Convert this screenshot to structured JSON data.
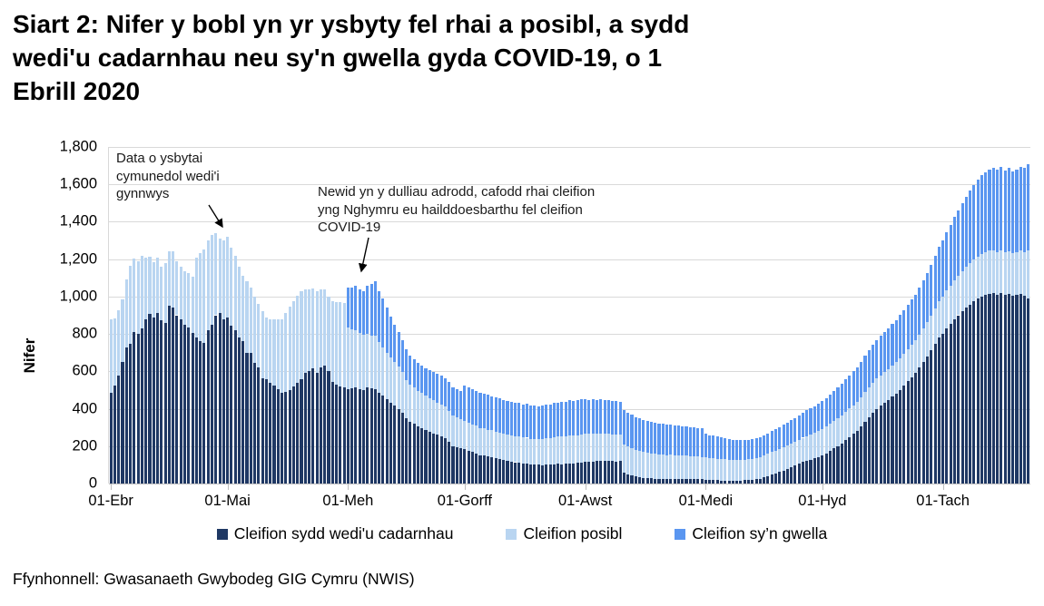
{
  "header": {
    "title_lines": [
      "Siart 2: Nifer y bobl yn yr ysbyty fel rhai a posibl, a sydd",
      "wedi'u cadarnhau neu sy'n gwella gyda COVID-19, o 1",
      "Ebrill 2020"
    ]
  },
  "annotations": {
    "community_hospitals": "Data o ysbytai cymunedol wedi'i gynnwys",
    "reporting_change": "Newid yn y dulliau adrodd, cafodd rhai cleifion yng Nghymru eu hailddoesbarthu fel cleifion COVID-19"
  },
  "legend": {
    "items": [
      {
        "label": "Cleifion sydd wedi'u cadarnhau",
        "color": "#1F3864"
      },
      {
        "label": "Cleifion posibl",
        "color": "#B9D5F1"
      },
      {
        "label": "Cleifion sy’n gwella",
        "color": "#5A96F0"
      }
    ]
  },
  "source": "Ffynhonnell: Gwasanaeth Gwybodeg GIG Cymru (NWIS)",
  "chart_data": {
    "type": "bar",
    "stacked": true,
    "title": "Siart 2: Nifer y bobl yn yr ysbyty fel rhai a posibl, a sydd wedi'u cadarnhau neu sy'n gwella gyda COVID-19, o 1 Ebrill 2020",
    "xlabel": "",
    "ylabel": "Nifer",
    "ylim": [
      0,
      1800
    ],
    "grid": true,
    "legend_position": "bottom",
    "start_date": "2020-04-01",
    "frequency": "daily",
    "y_ticks": [
      {
        "value": 0,
        "label": "0"
      },
      {
        "value": 200,
        "label": "200"
      },
      {
        "value": 400,
        "label": "400"
      },
      {
        "value": 600,
        "label": "600"
      },
      {
        "value": 800,
        "label": "800"
      },
      {
        "value": 1000,
        "label": "1,000"
      },
      {
        "value": 1200,
        "label": "1,200"
      },
      {
        "value": 1400,
        "label": "1,400"
      },
      {
        "value": 1600,
        "label": "1,600"
      },
      {
        "value": 1800,
        "label": "1,800"
      }
    ],
    "x_ticks": [
      {
        "day": 0,
        "label": "01-Ebr"
      },
      {
        "day": 30,
        "label": "01-Mai"
      },
      {
        "day": 61,
        "label": "01-Meh"
      },
      {
        "day": 91,
        "label": "01-Gorff"
      },
      {
        "day": 122,
        "label": "01-Awst"
      },
      {
        "day": 153,
        "label": "01-Medi"
      },
      {
        "day": 183,
        "label": "01-Hyd"
      },
      {
        "day": 214,
        "label": "01-Tach"
      }
    ],
    "series": [
      {
        "name": "Cleifion sydd wedi'u cadarnhau",
        "color": "#1F3864",
        "values": [
          485,
          525,
          575,
          650,
          730,
          745,
          810,
          800,
          830,
          880,
          905,
          890,
          910,
          875,
          860,
          950,
          940,
          900,
          880,
          850,
          835,
          805,
          780,
          760,
          750,
          820,
          850,
          900,
          910,
          880,
          890,
          845,
          820,
          780,
          760,
          700,
          700,
          645,
          620,
          565,
          560,
          540,
          525,
          505,
          485,
          490,
          500,
          520,
          540,
          560,
          590,
          600,
          615,
          590,
          620,
          630,
          600,
          545,
          530,
          520,
          515,
          505,
          510,
          515,
          505,
          500,
          515,
          510,
          505,
          485,
          470,
          450,
          430,
          415,
          400,
          380,
          350,
          330,
          318,
          305,
          295,
          285,
          275,
          268,
          260,
          252,
          243,
          225,
          200,
          195,
          190,
          185,
          175,
          168,
          160,
          152,
          150,
          144,
          140,
          134,
          130,
          126,
          122,
          118,
          114,
          110,
          108,
          105,
          103,
          101,
          100,
          99,
          101,
          100,
          103,
          105,
          104,
          106,
          108,
          107,
          110,
          112,
          115,
          117,
          116,
          119,
          121,
          122,
          120,
          122,
          118,
          120,
          60,
          50,
          45,
          38,
          33,
          30,
          28,
          27,
          26,
          26,
          25,
          24,
          25,
          25,
          24,
          23,
          24,
          23,
          22,
          22,
          22,
          20,
          19,
          18,
          17,
          16,
          15,
          15,
          14,
          15,
          16,
          17,
          18,
          20,
          22,
          26,
          32,
          40,
          48,
          55,
          62,
          70,
          78,
          88,
          95,
          105,
          115,
          122,
          128,
          135,
          142,
          150,
          162,
          175,
          188,
          200,
          215,
          232,
          248,
          265,
          280,
          305,
          330,
          355,
          378,
          400,
          416,
          432,
          448,
          464,
          480,
          502,
          524,
          546,
          568,
          590,
          620,
          650,
          680,
          713,
          746,
          780,
          800,
          828,
          855,
          878,
          900,
          922,
          940,
          958,
          975,
          988,
          1000,
          1008,
          1015,
          1020,
          1010,
          1018,
          1008,
          1012,
          1002,
          1008,
          1015,
          1005,
          990
        ]
      },
      {
        "name": "Cleifion posibl",
        "color": "#B9D5F1",
        "values": [
          395,
          360,
          350,
          335,
          360,
          420,
          395,
          390,
          390,
          330,
          310,
          295,
          300,
          285,
          320,
          290,
          300,
          290,
          280,
          285,
          290,
          300,
          430,
          470,
          500,
          480,
          480,
          440,
          400,
          420,
          430,
          415,
          400,
          380,
          350,
          380,
          350,
          355,
          340,
          355,
          330,
          340,
          355,
          375,
          395,
          420,
          445,
          455,
          465,
          470,
          450,
          440,
          430,
          440,
          420,
          410,
          400,
          430,
          440,
          450,
          450,
          330,
          315,
          305,
          300,
          295,
          285,
          280,
          285,
          270,
          260,
          250,
          245,
          235,
          225,
          215,
          205,
          200,
          196,
          192,
          188,
          184,
          180,
          177,
          174,
          171,
          168,
          165,
          162,
          158,
          155,
          150,
          152,
          148,
          150,
          146,
          148,
          144,
          146,
          142,
          144,
          140,
          142,
          138,
          140,
          140,
          138,
          140,
          136,
          138,
          136,
          138,
          140,
          142,
          144,
          146,
          148,
          146,
          148,
          150,
          148,
          150,
          150,
          148,
          150,
          146,
          148,
          144,
          146,
          142,
          144,
          140,
          150,
          148,
          146,
          142,
          140,
          138,
          136,
          134,
          132,
          130,
          130,
          128,
          128,
          126,
          126,
          125,
          124,
          124,
          122,
          122,
          120,
          120,
          118,
          117,
          116,
          115,
          114,
          112,
          111,
          110,
          110,
          111,
          112,
          113,
          115,
          116,
          118,
          119,
          120,
          121,
          122,
          124,
          125,
          126,
          128,
          129,
          130,
          132,
          134,
          136,
          138,
          140,
          142,
          144,
          146,
          148,
          150,
          152,
          153,
          154,
          155,
          157,
          158,
          160,
          161,
          162,
          163,
          164,
          165,
          166,
          168,
          169,
          170,
          172,
          173,
          175,
          178,
          180,
          183,
          186,
          190,
          195,
          200,
          203,
          205,
          208,
          212,
          215,
          218,
          220,
          223,
          225,
          228,
          230,
          230,
          228,
          226,
          230,
          228,
          232,
          230,
          228,
          230,
          232,
          255
        ]
      },
      {
        "name": "Cleifion sy’n gwella",
        "color": "#5A96F0",
        "values": [
          0,
          0,
          0,
          0,
          0,
          0,
          0,
          0,
          0,
          0,
          0,
          0,
          0,
          0,
          0,
          0,
          0,
          0,
          0,
          0,
          0,
          0,
          0,
          0,
          0,
          0,
          0,
          0,
          0,
          0,
          0,
          0,
          0,
          0,
          0,
          0,
          0,
          0,
          0,
          0,
          0,
          0,
          0,
          0,
          0,
          0,
          0,
          0,
          0,
          0,
          0,
          0,
          0,
          0,
          0,
          0,
          0,
          0,
          0,
          0,
          0,
          215,
          225,
          240,
          235,
          235,
          260,
          275,
          290,
          275,
          260,
          240,
          220,
          200,
          185,
          172,
          162,
          155,
          152,
          150,
          148,
          148,
          150,
          150,
          152,
          152,
          154,
          152,
          150,
          150,
          150,
          190,
          188,
          190,
          186,
          188,
          184,
          186,
          182,
          184,
          180,
          182,
          178,
          180,
          178,
          180,
          178,
          180,
          178,
          180,
          178,
          180,
          182,
          180,
          184,
          182,
          186,
          184,
          188,
          186,
          190,
          188,
          185,
          183,
          185,
          181,
          183,
          179,
          181,
          177,
          179,
          175,
          185,
          182,
          180,
          176,
          174,
          172,
          170,
          168,
          166,
          164,
          163,
          162,
          161,
          160,
          159,
          158,
          157,
          156,
          155,
          154,
          153,
          125,
          122,
          120,
          118,
          116,
          114,
          112,
          110,
          108,
          107,
          106,
          105,
          105,
          106,
          107,
          108,
          110,
          112,
          114,
          116,
          119,
          122,
          125,
          128,
          131,
          134,
          137,
          140,
          143,
          146,
          150,
          154,
          158,
          162,
          166,
          170,
          174,
          178,
          182,
          186,
          190,
          194,
          198,
          202,
          206,
          210,
          214,
          218,
          222,
          226,
          230,
          234,
          238,
          242,
          246,
          252,
          258,
          264,
          272,
          280,
          290,
          300,
          312,
          325,
          338,
          350,
          362,
          375,
          388,
          400,
          410,
          420,
          428,
          435,
          440,
          444,
          446,
          440,
          445,
          438,
          442,
          446,
          450,
          462
        ]
      }
    ]
  },
  "geometry_note": "plot area x 120-1135, y 162-533"
}
